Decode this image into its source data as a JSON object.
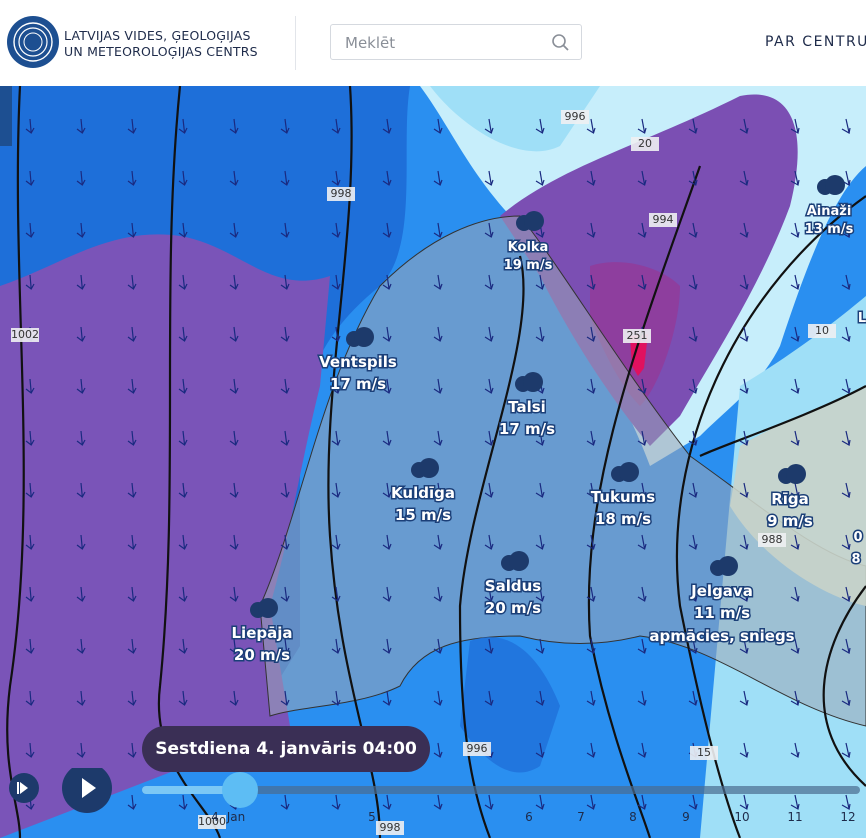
{
  "header": {
    "logo_line1": "LATVIJAS VIDES, ĢEOLOĢIJAS",
    "logo_line2": "UN METEOROLOĢIJAS CENTRS",
    "search_placeholder": "Meklēt",
    "nav": "PAR CENTRU"
  },
  "map": {
    "isobar_labels": [
      "996",
      "20",
      "994",
      "998",
      "1002",
      "10",
      "251",
      "988",
      "996",
      "15",
      "1000",
      "998"
    ],
    "edge_labels": [
      "L",
      "0",
      "8"
    ],
    "cities": [
      {
        "name": "Kolka",
        "wind": "19 m/s"
      },
      {
        "name": "Ainaži",
        "wind": "13 m/s"
      },
      {
        "name": "Ventspils",
        "wind": "17 m/s"
      },
      {
        "name": "Talsi",
        "wind": "17 m/s"
      },
      {
        "name": "Kuldīga",
        "wind": "15 m/s"
      },
      {
        "name": "Tukums",
        "wind": "18 m/s"
      },
      {
        "name": "Rīga",
        "wind": "9 m/s"
      },
      {
        "name": "Saldus",
        "wind": "20 m/s"
      },
      {
        "name": "Jelgava",
        "wind": "11 m/s",
        "weather": "apmācies, sniegs"
      },
      {
        "name": "Liepāja",
        "wind": "20 m/s"
      }
    ]
  },
  "timeline": {
    "current": "Sestdiena 4. janvāris 04:00",
    "ticks": [
      "4",
      "5",
      "6",
      "7",
      "8",
      "9",
      "10",
      "11",
      "12"
    ],
    "month": "Jan"
  }
}
